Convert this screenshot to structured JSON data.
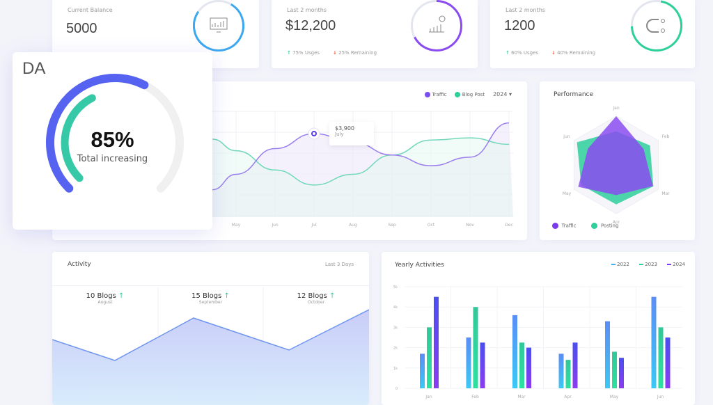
{
  "cards": [
    {
      "label": "Current Balance",
      "value": "5000",
      "icon": "monitor-chart-icon",
      "color": "#3ba8f0"
    },
    {
      "label": "Last 2 months",
      "value": "$12,200",
      "icon": "bar-chart-dollar-icon",
      "color": "#8a4cf0",
      "up": "75% Usges",
      "down": "25% Remaining"
    },
    {
      "label": "Last 2 months",
      "value": "1200",
      "icon": "magnet-users-icon",
      "color": "#2ecf9a",
      "up": "60% Usges",
      "down": "40% Remaining"
    }
  ],
  "gauge": {
    "title": "DA",
    "value": "85%",
    "subtitle": "Total increasing",
    "outer_fraction": 0.6,
    "inner_fraction": 0.4,
    "outer_color": "#5662f0",
    "inner_color": "#36c9a7"
  },
  "traffic_chart": {
    "legend": [
      {
        "name": "Traffic",
        "color": "#7b4cf0"
      },
      {
        "name": "Blog Post",
        "color": "#2ecf9a"
      }
    ],
    "year": "2024",
    "months": [
      "May",
      "Jun",
      "Jul",
      "Aug",
      "Sep",
      "Oct",
      "Nov",
      "Dec"
    ],
    "traffic": [
      2000,
      3200,
      3900,
      3500,
      2900,
      2400,
      2800,
      4400
    ],
    "blog": [
      3100,
      2200,
      1500,
      2000,
      2900,
      3600,
      3700,
      3400
    ],
    "tooltip": {
      "value": "$3,900",
      "month": "July"
    }
  },
  "performance": {
    "title": "Performance",
    "axes": [
      "Jan",
      "Feb",
      "Mar",
      "Apr",
      "May",
      "Jun"
    ],
    "series": [
      {
        "name": "Traffic",
        "color": "#8a4cf0",
        "values": [
          1.0,
          0.65,
          0.87,
          0.62,
          0.9,
          0.67
        ]
      },
      {
        "name": "Posting",
        "color": "#2ecf9a",
        "values": [
          0.69,
          0.8,
          0.88,
          0.81,
          0.83,
          0.93
        ]
      }
    ]
  },
  "activity": {
    "title": "Activity",
    "range": "Last 3 Days",
    "items": [
      {
        "count": "10 Blogs",
        "month": "August"
      },
      {
        "count": "15 Blogs",
        "month": "September"
      },
      {
        "count": "12 Blogs",
        "month": "October"
      }
    ]
  },
  "chart_data": {
    "type": "bar",
    "title": "Yearly Activities",
    "categories": [
      "Jan",
      "Feb",
      "Mar",
      "Apr",
      "May",
      "Jun"
    ],
    "yticks": [
      "0",
      "1k",
      "2k",
      "3k",
      "4k",
      "5k"
    ],
    "ylim": [
      0,
      5000
    ],
    "series": [
      {
        "name": "2022",
        "color": "#3fb0f5",
        "values": [
          1700,
          2500,
          3600,
          1700,
          3300,
          4500
        ]
      },
      {
        "name": "2023",
        "color": "#2ecf9a",
        "values": [
          3000,
          4000,
          2250,
          1400,
          1800,
          3000
        ]
      },
      {
        "name": "2024",
        "color": "#7b3cf0",
        "values": [
          4500,
          2250,
          2000,
          2250,
          1500,
          2500
        ]
      }
    ],
    "legend": "top-right"
  }
}
